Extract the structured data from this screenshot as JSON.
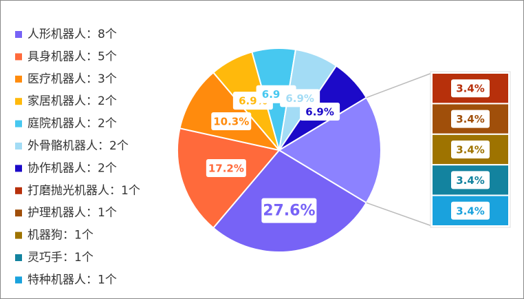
{
  "chart_data": {
    "type": "pie-of-bar",
    "pie": {
      "categories": [
        "人形机器人：8个",
        "具身机器人：5个",
        "医疗机器人：3个",
        "家居机器人：2个",
        "庭院机器人：2个",
        "外骨骼机器人：2个",
        "协作机器人：2个"
      ],
      "values": [
        8,
        5,
        3,
        2,
        2,
        2,
        2
      ],
      "value_labels": [
        "27.6%",
        "17.2%",
        "10.3%",
        "6.9%",
        "6.9%",
        "6.9%",
        "6.9%"
      ],
      "colors": [
        "#7763f6",
        "#ff6a3b",
        "#ff8b0d",
        "#ffb90c",
        "#47c8f0",
        "#a3dcf5",
        "#1c0ac8"
      ]
    },
    "bar": {
      "categories": [
        "打磨抛光机器人：1个",
        "护理机器人：1个",
        "机器狗：1个",
        "灵巧手：1个",
        "特种机器人：1个"
      ],
      "values": [
        1,
        1,
        1,
        1,
        1
      ],
      "value_labels": [
        "3.4%",
        "3.4%",
        "3.4%",
        "3.4%",
        "3.4%"
      ],
      "colors": [
        "#b7300b",
        "#a04f0a",
        "#9e7300",
        "#13839f",
        "#1aa2dd"
      ]
    },
    "other_color": "#8c82ff"
  }
}
